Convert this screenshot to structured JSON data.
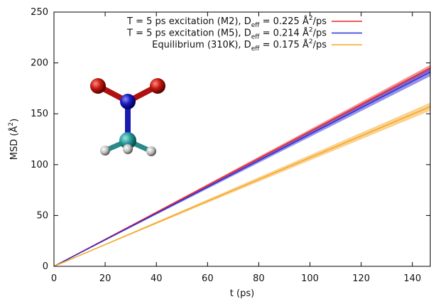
{
  "chart_data": {
    "type": "line",
    "xlabel": "t (ps)",
    "ylabel": "MSD (Å^{2})",
    "x": [
      0,
      147
    ],
    "series": [
      {
        "name": "T = 5 ps excitation (M2), D_{eff} = 0.225 Å^{2}/ps",
        "color": "#e8252a",
        "values": [
          0,
          195
        ],
        "lower": [
          0,
          192
        ],
        "upper": [
          0,
          198
        ]
      },
      {
        "name": "T = 5 ps excitation (M5), D_{eff} = 0.214 Å^{2}/ps",
        "color": "#2a2ad8",
        "values": [
          0,
          191
        ],
        "lower": [
          0,
          187
        ],
        "upper": [
          0,
          195
        ]
      },
      {
        "name": "Equilibrium (310K), D_{eff} = 0.175 Å^{2}/ps",
        "color": "#f5a623",
        "values": [
          0,
          157
        ],
        "lower": [
          0,
          153
        ],
        "upper": [
          0,
          161
        ]
      }
    ],
    "xlim": [
      0,
      147
    ],
    "ylim": [
      0,
      250
    ],
    "xticks": [
      0,
      20,
      40,
      60,
      80,
      100,
      120,
      140
    ],
    "yticks": [
      0,
      50,
      100,
      150,
      200,
      250
    ],
    "legend": "top"
  }
}
